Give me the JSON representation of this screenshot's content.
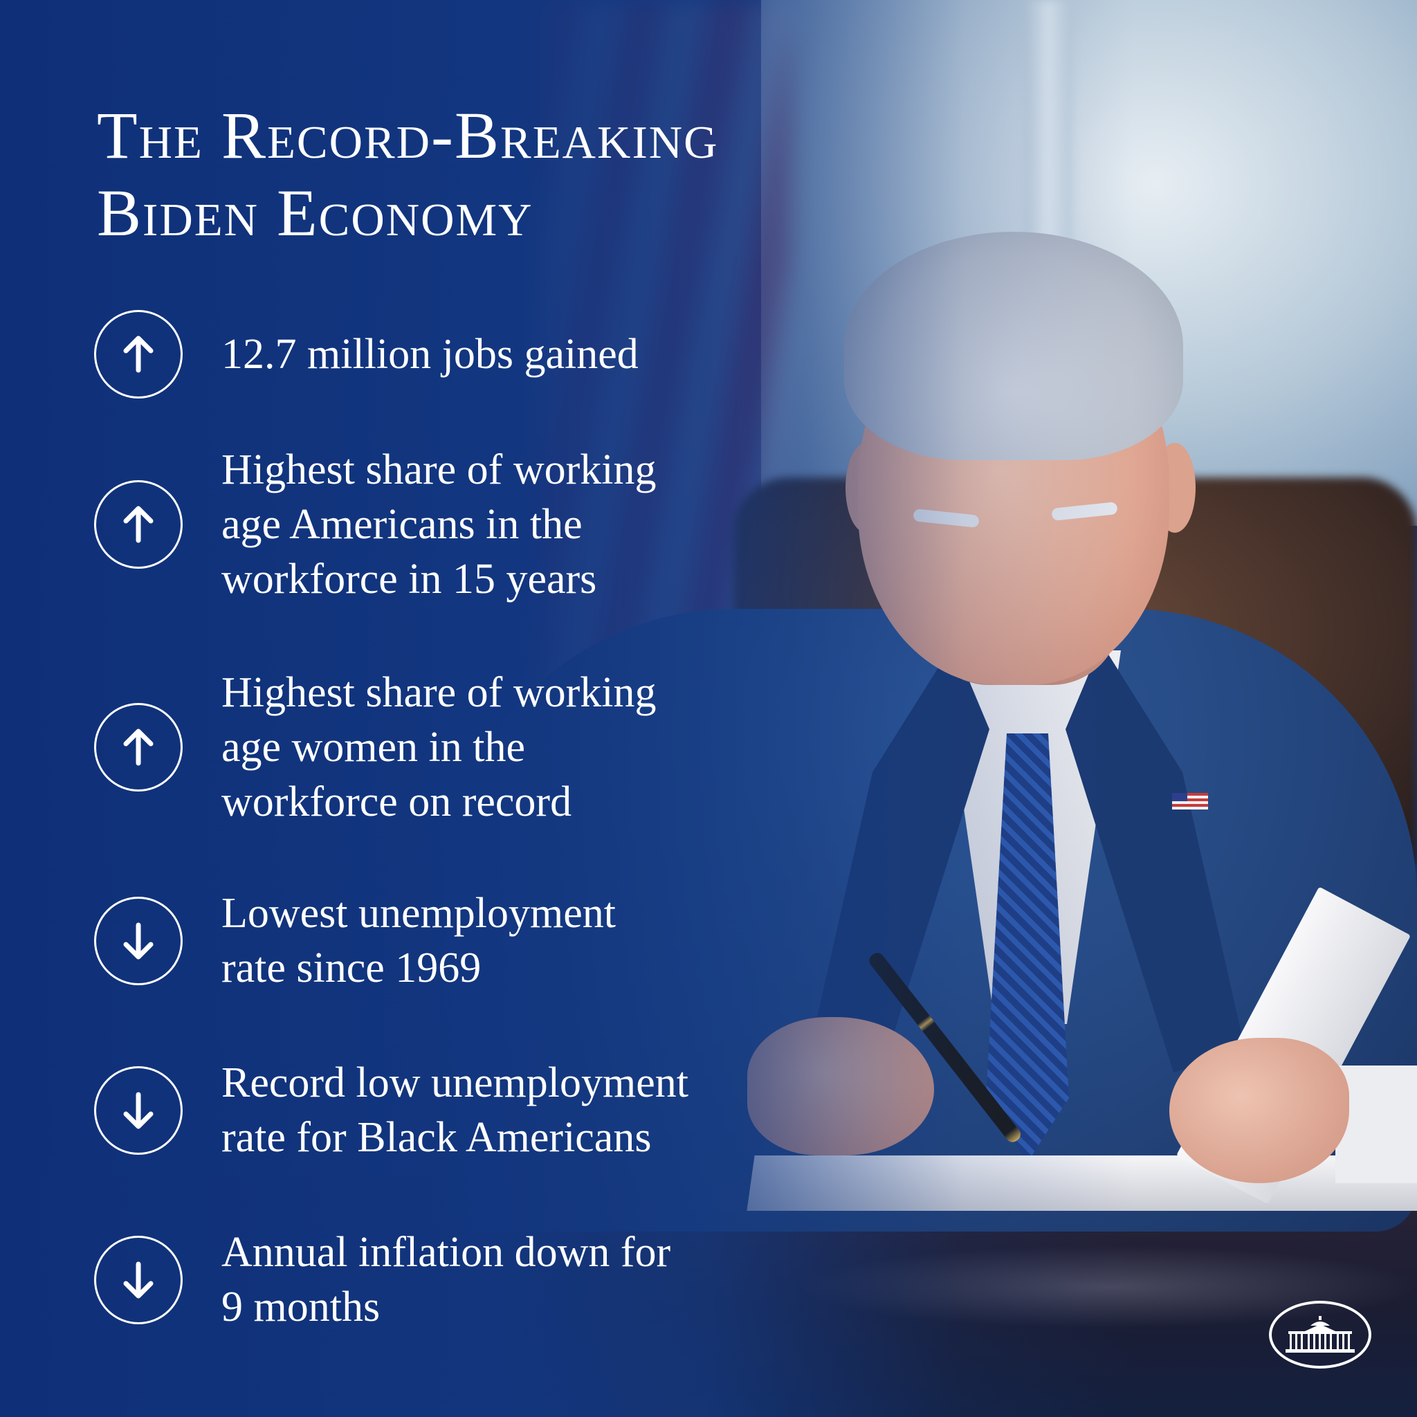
{
  "title": {
    "line1": "The Record-Breaking",
    "line2": "Biden Economy"
  },
  "stats": [
    {
      "direction": "up",
      "icon": "arrow-up-icon",
      "lines": [
        "12.7 million jobs gained"
      ]
    },
    {
      "direction": "up",
      "icon": "arrow-up-icon",
      "lines": [
        "Highest share of working",
        "age Americans in the",
        "workforce in 15 years"
      ]
    },
    {
      "direction": "up",
      "icon": "arrow-up-icon",
      "lines": [
        "Highest share of working",
        "age women in the",
        "workforce on record"
      ]
    },
    {
      "direction": "down",
      "icon": "arrow-down-icon",
      "lines": [
        "Lowest unemployment",
        "rate since 1969"
      ]
    },
    {
      "direction": "down",
      "icon": "arrow-down-icon",
      "lines": [
        "Record low unemployment",
        "rate for Black Americans"
      ]
    },
    {
      "direction": "down",
      "icon": "arrow-down-icon",
      "lines": [
        "Annual inflation down for",
        "9 months"
      ]
    }
  ],
  "logo": {
    "icon": "white-house-logo-icon"
  },
  "colors": {
    "background": "#163a80",
    "text": "#ffffff"
  }
}
